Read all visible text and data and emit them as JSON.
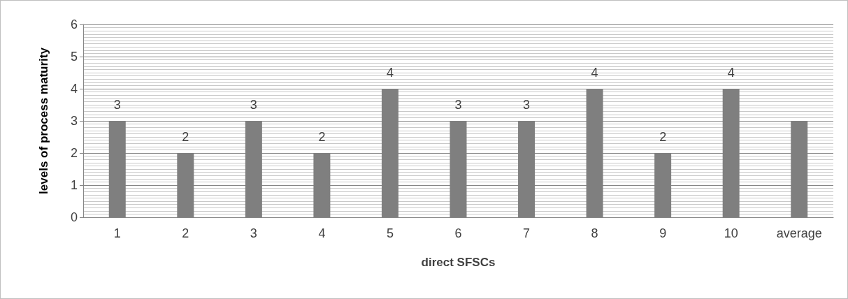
{
  "chart_data": {
    "type": "bar",
    "xlabel": "direct SFSCs",
    "ylabel": "levels of process maturity",
    "categories": [
      "1",
      "2",
      "3",
      "4",
      "5",
      "6",
      "7",
      "8",
      "9",
      "10",
      "average"
    ],
    "values": [
      3,
      2,
      3,
      2,
      4,
      3,
      3,
      4,
      2,
      4,
      3
    ],
    "value_labels": [
      "3",
      "2",
      "3",
      "2",
      "4",
      "3",
      "3",
      "4",
      "2",
      "4",
      null
    ],
    "color": "#7f7f7f",
    "ylim": [
      0,
      6
    ],
    "yticks": [
      0,
      1,
      2,
      3,
      4,
      5,
      6
    ],
    "grid": true
  }
}
